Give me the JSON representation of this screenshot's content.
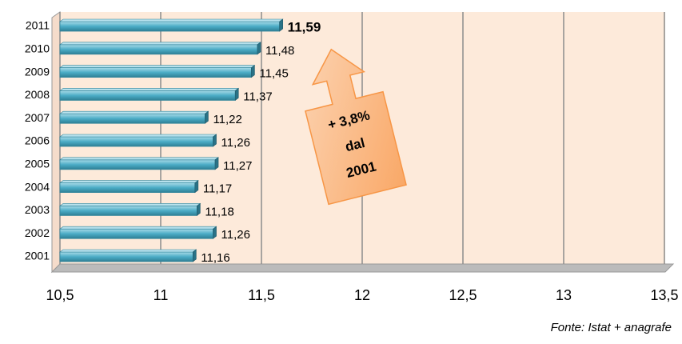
{
  "chart_data": {
    "type": "bar",
    "orientation": "horizontal",
    "categories": [
      "2001",
      "2002",
      "2003",
      "2004",
      "2005",
      "2006",
      "2007",
      "2008",
      "2009",
      "2010",
      "2011"
    ],
    "values": [
      11.16,
      11.26,
      11.18,
      11.17,
      11.27,
      11.26,
      11.22,
      11.37,
      11.45,
      11.48,
      11.59
    ],
    "value_labels": [
      "11,16",
      "11,26",
      "11,18",
      "11,17",
      "11,27",
      "11,26",
      "11,22",
      "11,37",
      "11,45",
      "11,48",
      "11,59"
    ],
    "color": "#4bacc6",
    "xlim": [
      10.5,
      13.5
    ],
    "xticks": [
      {
        "value": 10.5,
        "label": "10,5"
      },
      11,
      {
        "value": 11.5,
        "label": "11,5"
      },
      12,
      {
        "value": 12.5,
        "label": "12,5"
      },
      13,
      {
        "value": 13.5,
        "label": "13,5"
      }
    ],
    "grid": true,
    "annotation": [
      "+ 3,8%",
      "dal",
      "2001"
    ],
    "source": "Fonte: Istat + anagrafe"
  }
}
